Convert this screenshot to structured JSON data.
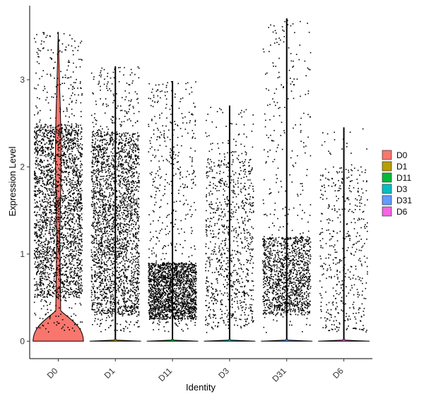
{
  "chart_data": {
    "type": "violin",
    "xlabel": "Identity",
    "ylabel": "Expression Level",
    "categories": [
      "D0",
      "D1",
      "D11",
      "D3",
      "D31",
      "D6"
    ],
    "ylim": [
      -0.2,
      3.85
    ],
    "yticks": [
      0,
      1,
      2,
      3
    ],
    "grid": false,
    "legend": {
      "position": "right",
      "entries": [
        {
          "label": "D0",
          "color": "#F8766D"
        },
        {
          "label": "D1",
          "color": "#B79F00"
        },
        {
          "label": "D11",
          "color": "#00BA38"
        },
        {
          "label": "D3",
          "color": "#00BFC4"
        },
        {
          "label": "D31",
          "color": "#619CFF"
        },
        {
          "label": "D6",
          "color": "#F564E3"
        }
      ]
    },
    "groups": [
      {
        "name": "D0",
        "color": "#F8766D",
        "max": 3.55,
        "density": 1.0,
        "dense_low": 0.5,
        "dense_high": 2.5,
        "violin_zero_halfwidth": 0.45,
        "zero_fraction": 0.8
      },
      {
        "name": "D1",
        "color": "#B79F00",
        "max": 3.15,
        "density": 1.0,
        "dense_low": 0.3,
        "dense_high": 2.4,
        "violin_zero_halfwidth": 0.45,
        "zero_fraction": 0.0
      },
      {
        "name": "D11",
        "color": "#00BA38",
        "max": 2.98,
        "density": 0.85,
        "dense_low": 0.25,
        "dense_high": 0.9,
        "violin_zero_halfwidth": 0.45,
        "zero_fraction": 0.0
      },
      {
        "name": "D3",
        "color": "#00BFC4",
        "max": 2.7,
        "density": 0.35,
        "dense_low": 0.15,
        "dense_high": 2.1,
        "violin_zero_halfwidth": 0.45,
        "zero_fraction": 0.0
      },
      {
        "name": "D31",
        "color": "#619CFF",
        "max": 3.7,
        "density": 0.55,
        "dense_low": 0.3,
        "dense_high": 1.2,
        "violin_zero_halfwidth": 0.45,
        "zero_fraction": 0.0
      },
      {
        "name": "D6",
        "color": "#F564E3",
        "max": 2.45,
        "density": 0.18,
        "dense_low": 0.1,
        "dense_high": 2.0,
        "violin_zero_halfwidth": 0.45,
        "zero_fraction": 0.0
      }
    ]
  }
}
